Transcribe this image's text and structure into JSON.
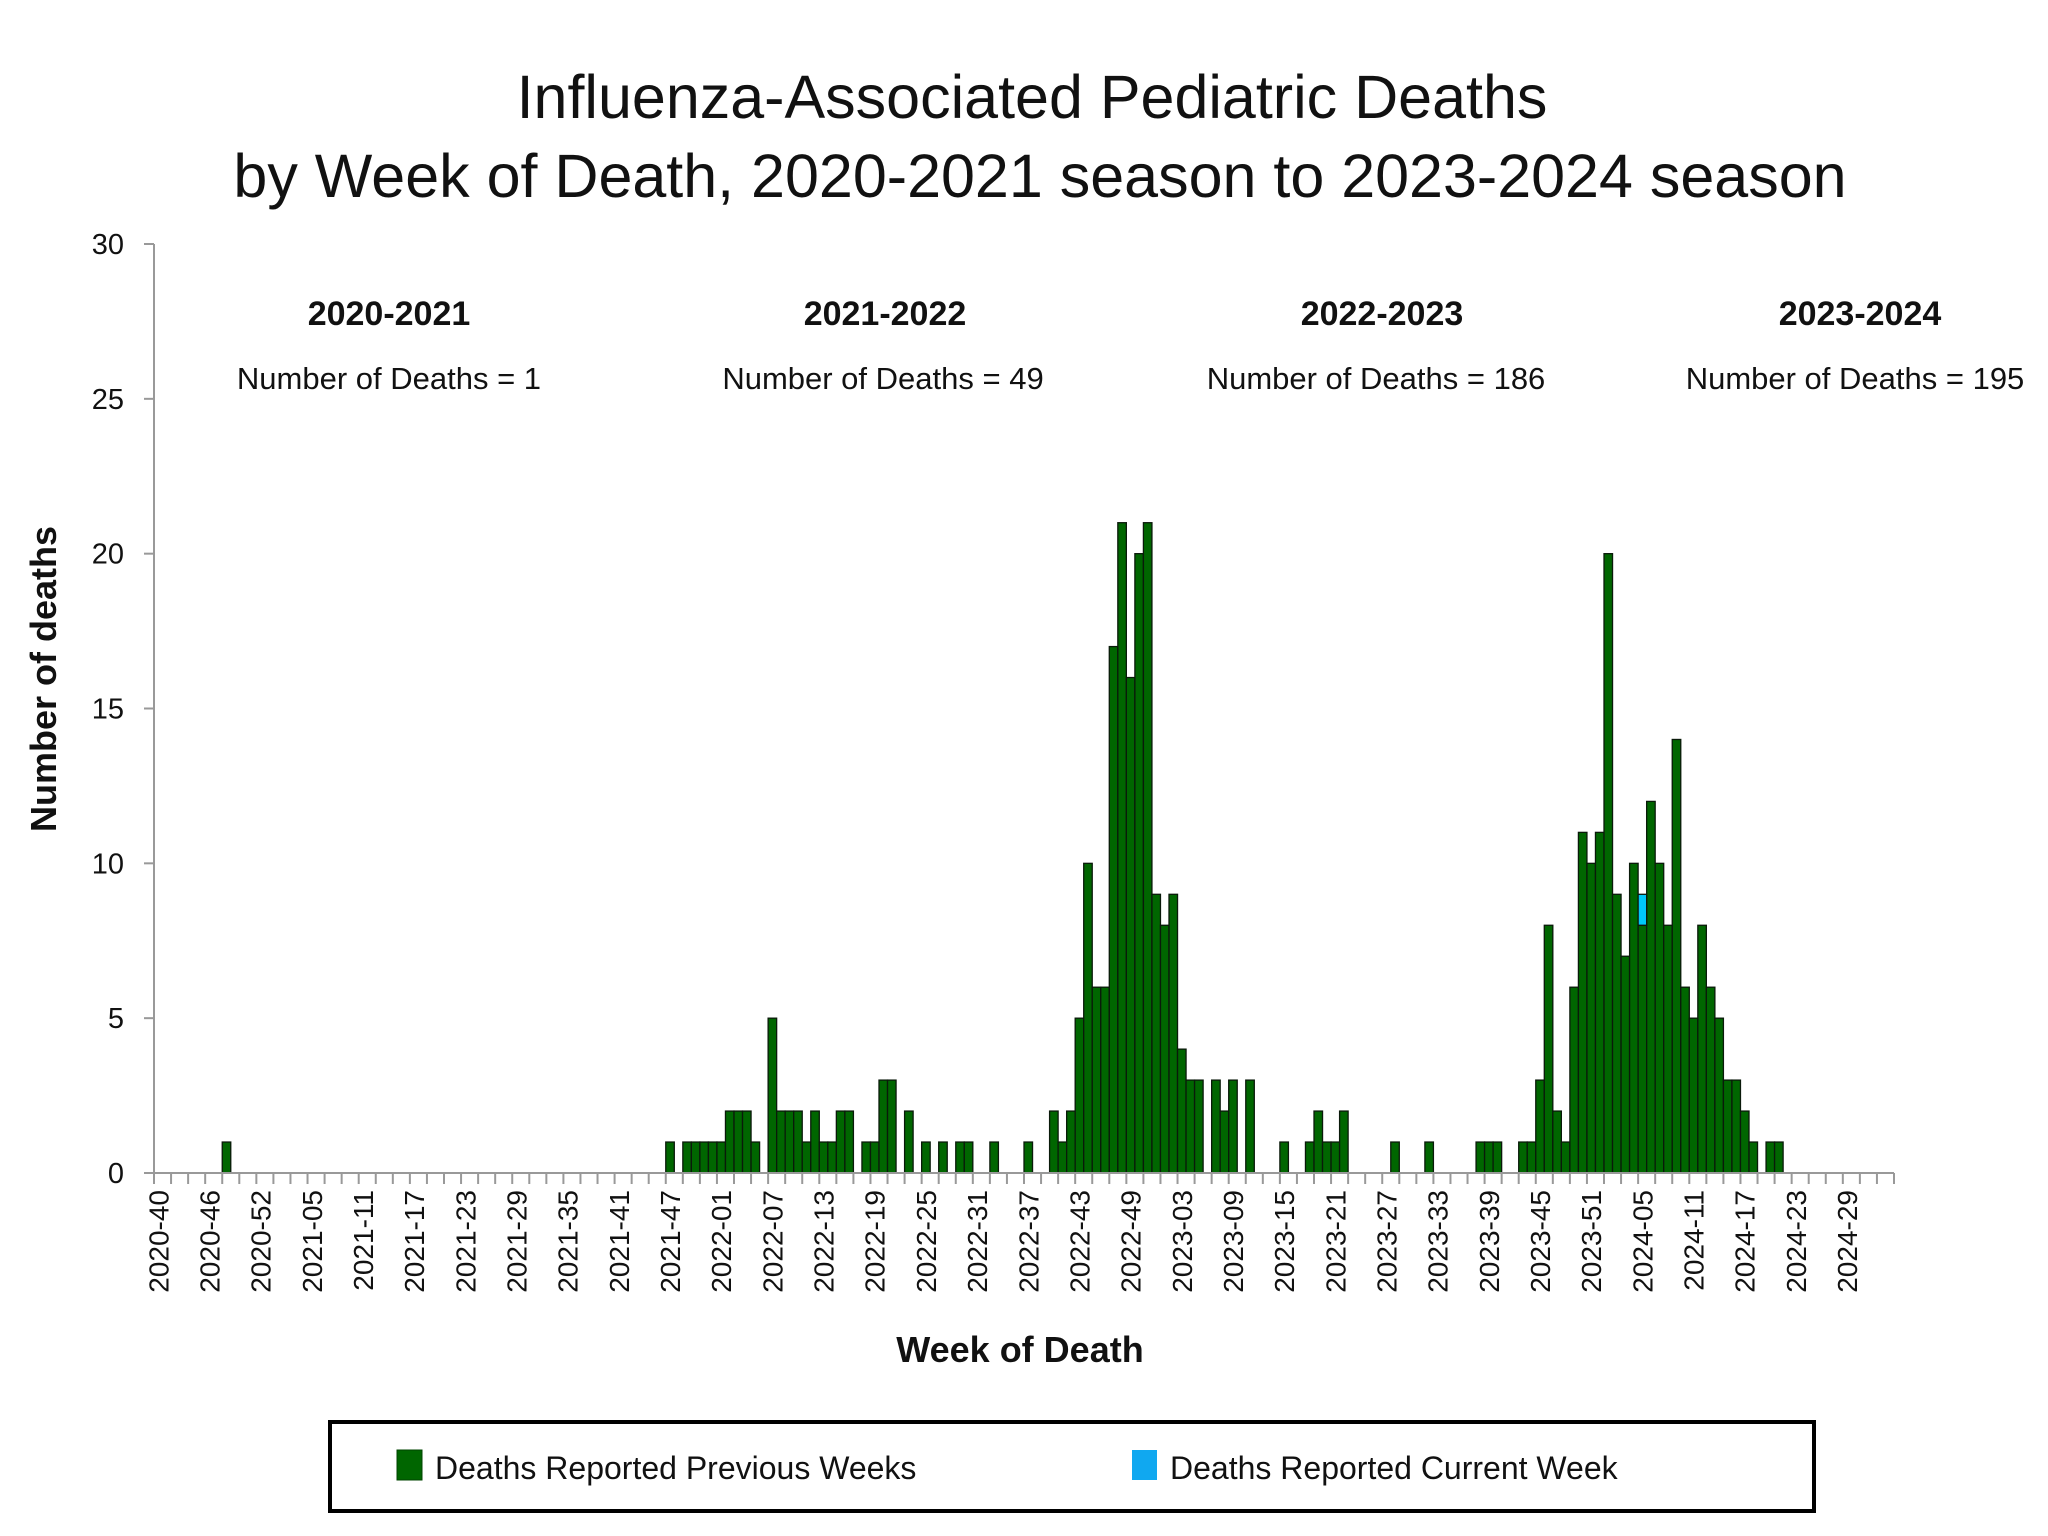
{
  "chart_data": {
    "type": "bar",
    "title": [
      "Influenza-Associated Pediatric Deaths",
      "by Week of Death, 2020-2021 season to 2023-2024 season"
    ],
    "xlabel": "Week of Death",
    "ylabel": "Number of deaths",
    "ylim": [
      0,
      30
    ],
    "yticks": [
      0,
      5,
      10,
      15,
      20,
      25,
      30
    ],
    "x_range": [
      "2020-40",
      "2024-34"
    ],
    "xtick_labels": [
      "2020-40",
      "2020-46",
      "2020-52",
      "2021-05",
      "2021-11",
      "2021-17",
      "2021-23",
      "2021-29",
      "2021-35",
      "2021-41",
      "2021-47",
      "2022-01",
      "2022-07",
      "2022-13",
      "2022-19",
      "2022-25",
      "2022-31",
      "2022-37",
      "2022-43",
      "2022-49",
      "2023-03",
      "2023-09",
      "2023-15",
      "2023-21",
      "2023-27",
      "2023-33",
      "2023-39",
      "2023-45",
      "2023-51",
      "2024-05",
      "2024-11",
      "2024-17",
      "2024-23",
      "2024-29"
    ],
    "grid": false,
    "stacked": true,
    "legend_placement": "bottom",
    "seasons": [
      {
        "name": "2020-2021",
        "label": "Number of Deaths = 1"
      },
      {
        "name": "2021-2022",
        "label": "Number of Deaths = 49"
      },
      {
        "name": "2022-2023",
        "label": "Number of Deaths = 186"
      },
      {
        "name": "2023-2024",
        "label": "Number of Deaths = 195"
      }
    ],
    "series": [
      {
        "name": "Deaths Reported Previous Weeks",
        "color": "#006600",
        "points": [
          [
            "2020-48",
            1
          ],
          [
            "2021-47",
            1
          ],
          [
            "2021-49",
            1
          ],
          [
            "2021-50",
            1
          ],
          [
            "2021-51",
            1
          ],
          [
            "2021-52",
            1
          ],
          [
            "2022-01",
            1
          ],
          [
            "2022-02",
            2
          ],
          [
            "2022-03",
            2
          ],
          [
            "2022-04",
            2
          ],
          [
            "2022-05",
            1
          ],
          [
            "2022-07",
            5
          ],
          [
            "2022-08",
            2
          ],
          [
            "2022-09",
            2
          ],
          [
            "2022-10",
            2
          ],
          [
            "2022-11",
            1
          ],
          [
            "2022-12",
            2
          ],
          [
            "2022-13",
            1
          ],
          [
            "2022-14",
            1
          ],
          [
            "2022-15",
            2
          ],
          [
            "2022-16",
            2
          ],
          [
            "2022-18",
            1
          ],
          [
            "2022-19",
            1
          ],
          [
            "2022-20",
            3
          ],
          [
            "2022-21",
            3
          ],
          [
            "2022-23",
            2
          ],
          [
            "2022-25",
            1
          ],
          [
            "2022-27",
            1
          ],
          [
            "2022-29",
            1
          ],
          [
            "2022-30",
            1
          ],
          [
            "2022-33",
            1
          ],
          [
            "2022-37",
            1
          ],
          [
            "2022-40",
            2
          ],
          [
            "2022-41",
            1
          ],
          [
            "2022-42",
            2
          ],
          [
            "2022-43",
            5
          ],
          [
            "2022-44",
            10
          ],
          [
            "2022-45",
            6
          ],
          [
            "2022-46",
            6
          ],
          [
            "2022-47",
            17
          ],
          [
            "2022-48",
            21
          ],
          [
            "2022-49",
            16
          ],
          [
            "2022-50",
            20
          ],
          [
            "2022-51",
            21
          ],
          [
            "2022-52",
            9
          ],
          [
            "2023-01",
            8
          ],
          [
            "2023-02",
            9
          ],
          [
            "2023-03",
            4
          ],
          [
            "2023-04",
            3
          ],
          [
            "2023-05",
            3
          ],
          [
            "2023-07",
            3
          ],
          [
            "2023-08",
            2
          ],
          [
            "2023-09",
            3
          ],
          [
            "2023-11",
            3
          ],
          [
            "2023-15",
            1
          ],
          [
            "2023-18",
            1
          ],
          [
            "2023-19",
            2
          ],
          [
            "2023-20",
            1
          ],
          [
            "2023-21",
            1
          ],
          [
            "2023-22",
            2
          ],
          [
            "2023-28",
            1
          ],
          [
            "2023-32",
            1
          ],
          [
            "2023-38",
            1
          ],
          [
            "2023-39",
            1
          ],
          [
            "2023-40",
            1
          ],
          [
            "2023-43",
            1
          ],
          [
            "2023-44",
            1
          ],
          [
            "2023-45",
            3
          ],
          [
            "2023-46",
            8
          ],
          [
            "2023-47",
            2
          ],
          [
            "2023-48",
            1
          ],
          [
            "2023-49",
            6
          ],
          [
            "2023-50",
            11
          ],
          [
            "2023-51",
            10
          ],
          [
            "2023-52",
            11
          ],
          [
            "2024-01",
            20
          ],
          [
            "2024-02",
            9
          ],
          [
            "2024-03",
            7
          ],
          [
            "2024-04",
            10
          ],
          [
            "2024-05",
            8
          ],
          [
            "2024-06",
            12
          ],
          [
            "2024-07",
            10
          ],
          [
            "2024-08",
            8
          ],
          [
            "2024-09",
            14
          ],
          [
            "2024-10",
            6
          ],
          [
            "2024-11",
            5
          ],
          [
            "2024-12",
            8
          ],
          [
            "2024-13",
            6
          ],
          [
            "2024-14",
            5
          ],
          [
            "2024-15",
            3
          ],
          [
            "2024-16",
            3
          ],
          [
            "2024-17",
            2
          ],
          [
            "2024-18",
            1
          ],
          [
            "2024-20",
            1
          ],
          [
            "2024-21",
            1
          ]
        ]
      },
      {
        "name": "Deaths Reported Current Week",
        "color": "#00C8F8",
        "points": [
          [
            "2024-05",
            1
          ]
        ]
      }
    ]
  }
}
